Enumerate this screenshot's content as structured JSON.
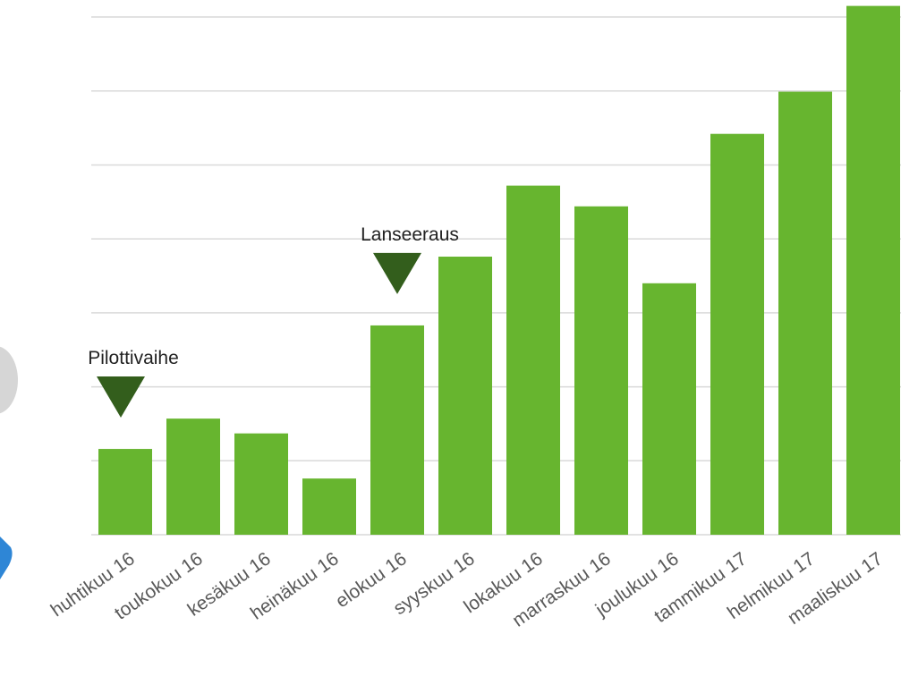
{
  "chart_data": {
    "type": "bar",
    "categories": [
      "huhtikuu 16",
      "toukokuu 16",
      "kesäkuu 16",
      "heinäkuu 16",
      "elokuu 16",
      "syyskuu 16",
      "lokakuu 16",
      "marraskuu 16",
      "joulukuu 16",
      "tammikuu 17",
      "helmikuu 17",
      "maaliskuu 17"
    ],
    "values": [
      1.16,
      1.57,
      1.37,
      0.76,
      2.83,
      3.76,
      4.72,
      4.44,
      3.4,
      5.42,
      5.99,
      7.15
    ],
    "color": "#67b52f",
    "ylim": [
      0,
      7.23
    ],
    "yticks": [
      0,
      1,
      2,
      3,
      4,
      5,
      6,
      7
    ],
    "grid": true,
    "annotations": [
      {
        "text": "Pilottivaihe",
        "category": "huhtikuu 16"
      },
      {
        "text": "Lanseeraus",
        "category": "elokuu 16"
      }
    ]
  }
}
